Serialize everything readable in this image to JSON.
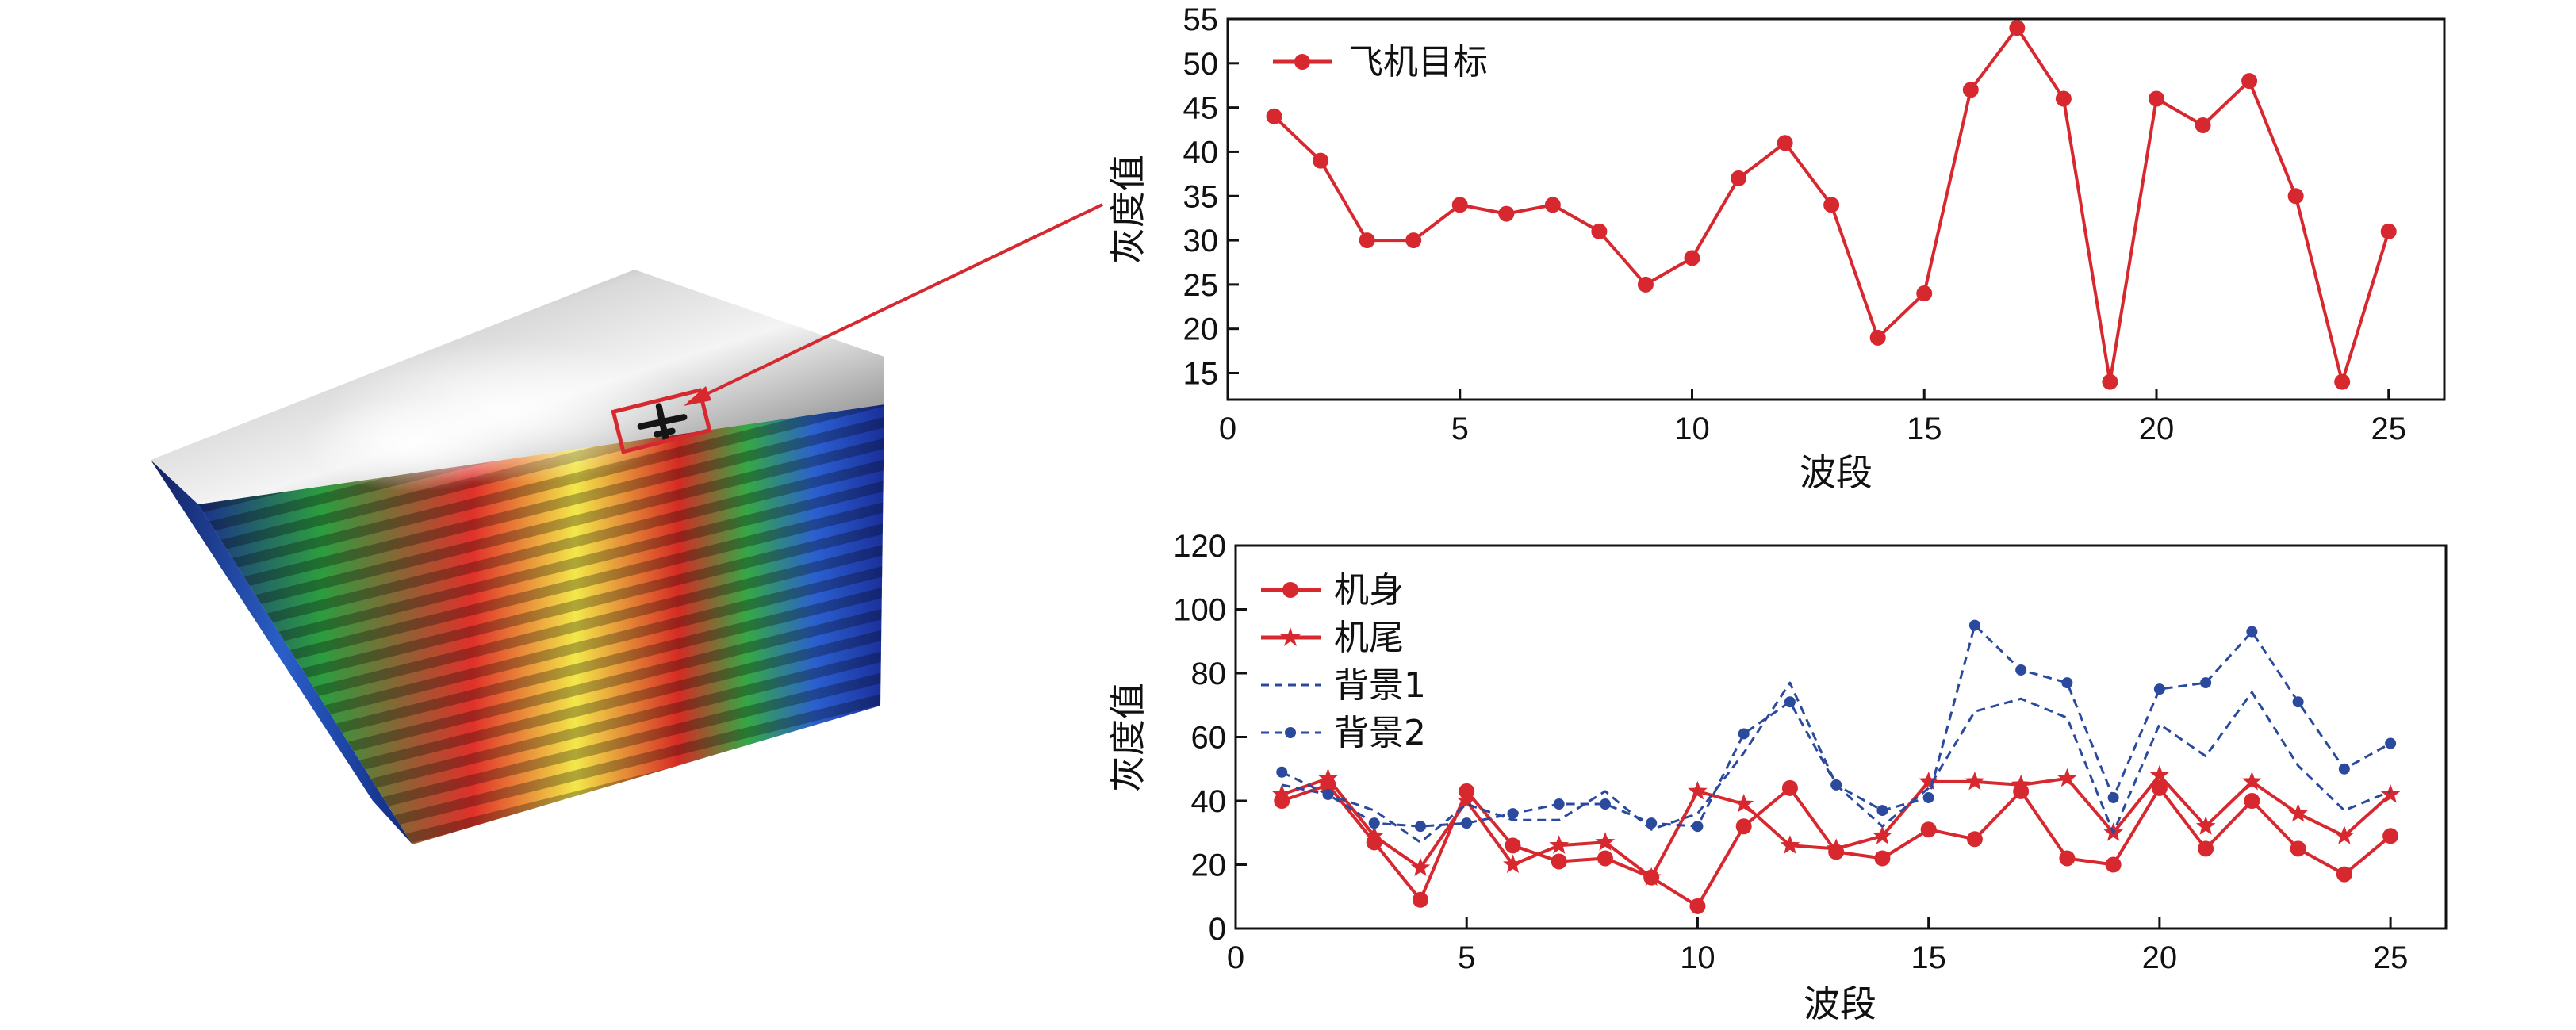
{
  "colors": {
    "red": "#d7282f",
    "blue": "#2b4a9e",
    "axis": "#111111"
  },
  "chart_data": [
    {
      "type": "line",
      "xlabel": "波段",
      "ylabel": "灰度值",
      "xlim": [
        0,
        26.2
      ],
      "ylim": [
        12,
        55
      ],
      "xticks": [
        0,
        5,
        10,
        15,
        20,
        25
      ],
      "yticks": [
        15,
        20,
        25,
        30,
        35,
        40,
        45,
        50,
        55
      ],
      "legend_position": "top-left",
      "grid": false,
      "series": [
        {
          "name": "飞机目标",
          "color": "#d7282f",
          "marker": "circle",
          "dash": "solid",
          "x": [
            1,
            2,
            3,
            4,
            5,
            6,
            7,
            8,
            9,
            10,
            11,
            12,
            13,
            14,
            15,
            16,
            17,
            18,
            19,
            20,
            21,
            22,
            23,
            24,
            25
          ],
          "values": [
            44,
            39,
            30,
            30,
            34,
            33,
            34,
            31,
            25,
            28,
            37,
            41,
            34,
            19,
            24,
            47,
            54,
            46,
            14,
            46,
            43,
            48,
            35,
            14,
            31
          ]
        }
      ]
    },
    {
      "type": "line",
      "xlabel": "波段",
      "ylabel": "灰度值",
      "xlim": [
        0,
        26.2
      ],
      "ylim": [
        0,
        120
      ],
      "xticks": [
        0,
        5,
        10,
        15,
        20,
        25
      ],
      "yticks": [
        0,
        20,
        40,
        60,
        80,
        100,
        120
      ],
      "legend_position": "top-left",
      "grid": false,
      "series": [
        {
          "name": "机身",
          "color": "#d7282f",
          "marker": "circle",
          "dash": "solid",
          "x": [
            1,
            2,
            3,
            4,
            5,
            6,
            7,
            8,
            9,
            10,
            11,
            12,
            13,
            14,
            15,
            16,
            17,
            18,
            19,
            20,
            21,
            22,
            23,
            24,
            25
          ],
          "values": [
            40,
            45,
            27,
            9,
            43,
            26,
            21,
            22,
            16,
            7,
            32,
            44,
            24,
            22,
            31,
            28,
            43,
            22,
            20,
            44,
            25,
            40,
            25,
            17,
            29
          ]
        },
        {
          "name": "机尾",
          "color": "#d7282f",
          "marker": "star",
          "dash": "solid",
          "x": [
            1,
            2,
            3,
            4,
            5,
            6,
            7,
            8,
            9,
            10,
            11,
            12,
            13,
            14,
            15,
            16,
            17,
            18,
            19,
            20,
            21,
            22,
            23,
            24,
            25
          ],
          "values": [
            42,
            47,
            29,
            19,
            40,
            20,
            26,
            27,
            16,
            43,
            39,
            26,
            25,
            29,
            46,
            46,
            45,
            47,
            30,
            48,
            32,
            46,
            36,
            29,
            42
          ]
        },
        {
          "name": "背景1",
          "color": "#2b4a9e",
          "marker": "none",
          "dash": "dashed",
          "x": [
            1,
            2,
            3,
            4,
            5,
            6,
            7,
            8,
            9,
            10,
            11,
            12,
            13,
            14,
            15,
            16,
            17,
            18,
            19,
            20,
            21,
            22,
            23,
            24,
            25
          ],
          "values": [
            45,
            42,
            37,
            27,
            39,
            34,
            34,
            43,
            31,
            36,
            55,
            77,
            45,
            32,
            44,
            68,
            72,
            66,
            30,
            64,
            54,
            74,
            51,
            37,
            43
          ]
        },
        {
          "name": "背景2",
          "color": "#2b4a9e",
          "marker": "circle-small",
          "dash": "dashed",
          "x": [
            1,
            2,
            3,
            4,
            5,
            6,
            7,
            8,
            9,
            10,
            11,
            12,
            13,
            14,
            15,
            16,
            17,
            18,
            19,
            20,
            21,
            22,
            23,
            24,
            25
          ],
          "values": [
            49,
            42,
            33,
            32,
            33,
            36,
            39,
            39,
            33,
            32,
            61,
            71,
            45,
            37,
            41,
            95,
            81,
            77,
            41,
            75,
            77,
            93,
            71,
            50,
            58
          ]
        }
      ]
    }
  ]
}
